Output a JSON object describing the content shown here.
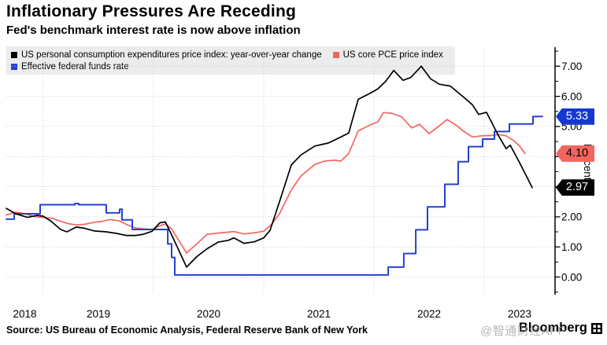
{
  "chart_data": {
    "type": "line",
    "title": "Inflationary Pressures Are Receding",
    "subtitle": "Fed's benchmark interest rate is now above inflation",
    "source": "Source: US Bureau of Economic Analysis, Federal Reserve Bank of New York",
    "ylabel": "Percent",
    "grid": true,
    "legend_position": "top-left",
    "axis_side": "right",
    "xlim": [
      2018.664,
      2023.643
    ],
    "ylim": [
      -0.56,
      7.58
    ],
    "y_ticks": [
      0,
      1,
      2,
      3,
      4,
      5,
      6,
      7
    ],
    "y_tick_format": "0.00",
    "y_minor_step": 0.5,
    "x_gridline_years": [
      2019,
      2020,
      2021,
      2022,
      2023
    ],
    "x_tick_labels": [
      "2018",
      "2019",
      "2020",
      "2021",
      "2022",
      "2023"
    ],
    "series": [
      {
        "name": "US personal consumption expenditures price index: year-over-year change",
        "color": "#000000",
        "step": false,
        "points": [
          [
            2018.664,
            2.28
          ],
          [
            2018.75,
            2.1
          ],
          [
            2018.857,
            1.98
          ],
          [
            2018.943,
            2.05
          ],
          [
            2019.0,
            2.02
          ],
          [
            2019.071,
            1.85
          ],
          [
            2019.157,
            1.58
          ],
          [
            2019.214,
            1.5
          ],
          [
            2019.3,
            1.66
          ],
          [
            2019.371,
            1.62
          ],
          [
            2019.464,
            1.53
          ],
          [
            2019.571,
            1.5
          ],
          [
            2019.664,
            1.45
          ],
          [
            2019.75,
            1.38
          ],
          [
            2019.836,
            1.38
          ],
          [
            2019.907,
            1.42
          ],
          [
            2019.986,
            1.52
          ],
          [
            2020.057,
            1.8
          ],
          [
            2020.107,
            1.83
          ],
          [
            2020.164,
            1.4
          ],
          [
            2020.3,
            0.33
          ],
          [
            2020.393,
            0.68
          ],
          [
            2020.486,
            0.94
          ],
          [
            2020.586,
            1.16
          ],
          [
            2020.679,
            1.22
          ],
          [
            2020.729,
            1.3
          ],
          [
            2020.821,
            1.12
          ],
          [
            2020.914,
            1.17
          ],
          [
            2021.0,
            1.3
          ],
          [
            2021.057,
            1.55
          ],
          [
            2021.143,
            2.5
          ],
          [
            2021.25,
            3.72
          ],
          [
            2021.336,
            4.05
          ],
          [
            2021.464,
            4.35
          ],
          [
            2021.586,
            4.45
          ],
          [
            2021.7,
            4.65
          ],
          [
            2021.771,
            4.78
          ],
          [
            2021.857,
            5.9
          ],
          [
            2021.964,
            6.1
          ],
          [
            2022.036,
            6.25
          ],
          [
            2022.107,
            6.5
          ],
          [
            2022.179,
            6.86
          ],
          [
            2022.264,
            6.53
          ],
          [
            2022.336,
            6.63
          ],
          [
            2022.429,
            7.0
          ],
          [
            2022.514,
            6.58
          ],
          [
            2022.593,
            6.4
          ],
          [
            2022.693,
            6.34
          ],
          [
            2022.821,
            5.95
          ],
          [
            2022.893,
            5.72
          ],
          [
            2022.95,
            5.4
          ],
          [
            2023.021,
            5.47
          ],
          [
            2023.129,
            4.7
          ],
          [
            2023.2,
            4.26
          ],
          [
            2023.236,
            4.38
          ],
          [
            2023.321,
            3.8
          ],
          [
            2023.393,
            3.28
          ],
          [
            2023.436,
            2.97
          ]
        ]
      },
      {
        "name": "US core PCE price index",
        "color": "#f4655f",
        "step": false,
        "points": [
          [
            2018.664,
            2.06
          ],
          [
            2018.75,
            2.15
          ],
          [
            2018.836,
            2.1
          ],
          [
            2018.929,
            2.0
          ],
          [
            2019.0,
            1.98
          ],
          [
            2019.086,
            1.95
          ],
          [
            2019.157,
            1.85
          ],
          [
            2019.229,
            1.77
          ],
          [
            2019.3,
            1.73
          ],
          [
            2019.371,
            1.75
          ],
          [
            2019.464,
            1.82
          ],
          [
            2019.536,
            1.85
          ],
          [
            2019.607,
            1.91
          ],
          [
            2019.693,
            1.86
          ],
          [
            2019.764,
            1.73
          ],
          [
            2019.836,
            1.63
          ],
          [
            2019.907,
            1.6
          ],
          [
            2019.986,
            1.58
          ],
          [
            2020.057,
            1.7
          ],
          [
            2020.107,
            1.76
          ],
          [
            2020.164,
            1.6
          ],
          [
            2020.3,
            0.8
          ],
          [
            2020.393,
            1.1
          ],
          [
            2020.486,
            1.42
          ],
          [
            2020.586,
            1.46
          ],
          [
            2020.679,
            1.49
          ],
          [
            2020.729,
            1.51
          ],
          [
            2020.821,
            1.43
          ],
          [
            2020.914,
            1.47
          ],
          [
            2021.0,
            1.52
          ],
          [
            2021.071,
            1.75
          ],
          [
            2021.143,
            2.1
          ],
          [
            2021.25,
            2.89
          ],
          [
            2021.336,
            3.35
          ],
          [
            2021.464,
            3.74
          ],
          [
            2021.55,
            3.85
          ],
          [
            2021.643,
            3.88
          ],
          [
            2021.7,
            3.85
          ],
          [
            2021.771,
            4.1
          ],
          [
            2021.857,
            4.85
          ],
          [
            2021.964,
            5.05
          ],
          [
            2022.036,
            5.15
          ],
          [
            2022.086,
            5.46
          ],
          [
            2022.157,
            5.44
          ],
          [
            2022.25,
            5.32
          ],
          [
            2022.343,
            4.95
          ],
          [
            2022.414,
            5.07
          ],
          [
            2022.5,
            4.76
          ],
          [
            2022.586,
            5.0
          ],
          [
            2022.664,
            5.23
          ],
          [
            2022.75,
            5.03
          ],
          [
            2022.821,
            4.82
          ],
          [
            2022.893,
            4.65
          ],
          [
            2022.979,
            4.69
          ],
          [
            2023.071,
            4.7
          ],
          [
            2023.129,
            4.73
          ],
          [
            2023.2,
            4.69
          ],
          [
            2023.271,
            4.52
          ],
          [
            2023.321,
            4.35
          ],
          [
            2023.371,
            4.1
          ]
        ]
      },
      {
        "name": "Effective federal funds rate",
        "color": "#2640d0",
        "step": true,
        "points": [
          [
            2018.664,
            1.92
          ],
          [
            2018.736,
            2.1
          ],
          [
            2018.971,
            2.4
          ],
          [
            2019.286,
            2.44
          ],
          [
            2019.321,
            2.4
          ],
          [
            2019.571,
            2.13
          ],
          [
            2019.693,
            2.25
          ],
          [
            2019.714,
            1.9
          ],
          [
            2019.807,
            1.58
          ],
          [
            2020.129,
            1.1
          ],
          [
            2020.164,
            0.65
          ],
          [
            2020.193,
            0.07
          ],
          [
            2022.129,
            0.33
          ],
          [
            2022.271,
            0.78
          ],
          [
            2022.379,
            1.57
          ],
          [
            2022.486,
            2.33
          ],
          [
            2022.643,
            3.08
          ],
          [
            2022.764,
            3.83
          ],
          [
            2022.857,
            4.33
          ],
          [
            2022.986,
            4.58
          ],
          [
            2023.093,
            4.83
          ],
          [
            2023.229,
            5.08
          ],
          [
            2023.443,
            5.33
          ],
          [
            2023.529,
            5.33
          ]
        ]
      }
    ],
    "end_labels": [
      {
        "text": "5.33",
        "value": 5.33,
        "bg": "#1539cf",
        "fg": "#ffffff",
        "series": "Effective federal funds rate"
      },
      {
        "text": "4.10",
        "value": 4.1,
        "bg": "#f4655f",
        "fg": "#000000",
        "series": "US core PCE price index"
      },
      {
        "text": "2.97",
        "value": 2.97,
        "bg": "#000000",
        "fg": "#ffffff",
        "series": "US personal consumption expenditures price index: year-over-year change"
      }
    ]
  },
  "branding": {
    "logo_text": "Bloomberg",
    "watermark": "@智通财经APP"
  }
}
